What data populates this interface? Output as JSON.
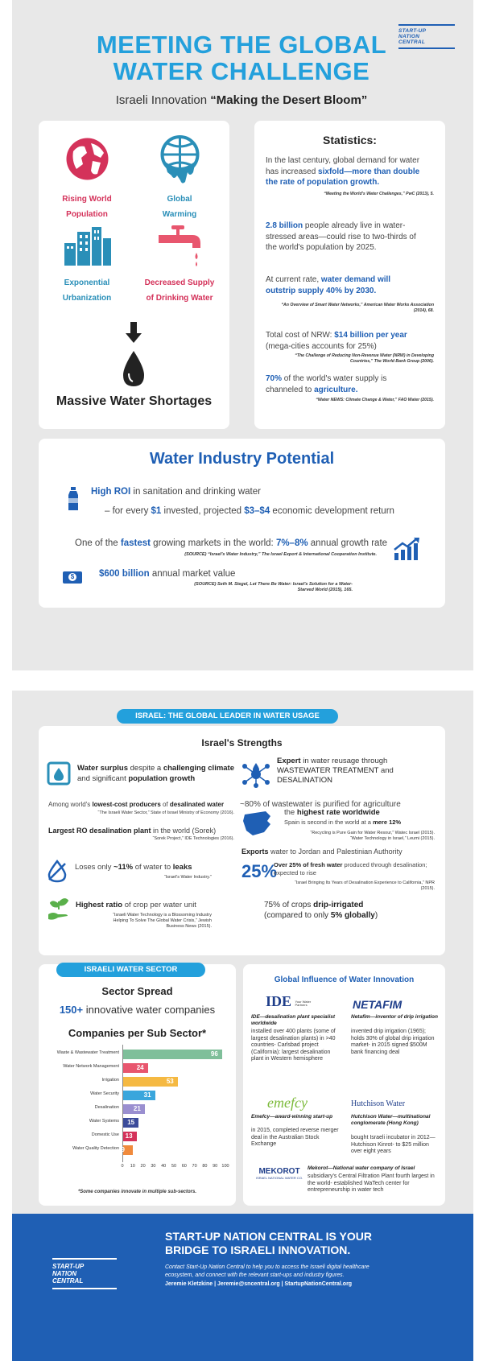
{
  "brand": {
    "line1": "START-UP",
    "line2": "NATION",
    "line3": "CENTRAL"
  },
  "header": {
    "title_line1": "MEETING THE GLOBAL",
    "title_line2": "WATER CHALLENGE",
    "subtitle_plain": "Israeli Innovation ",
    "subtitle_bold": "“Making the Desert Bloom”"
  },
  "drivers": {
    "rising_population_1": "Rising World",
    "rising_population_2": "Population",
    "global_warming_1": "Global",
    "global_warming_2": "Warming",
    "urbanization_1": "Exponential",
    "urbanization_2": "Urbanization",
    "supply_1": "Decreased Supply",
    "supply_2": "of Drinking Water",
    "result": "Massive Water Shortages"
  },
  "stats": {
    "title": "Statistics:",
    "s1_a": "In the last century, global demand for water has increased ",
    "s1_b": "sixfold—more than double the rate of population growth.",
    "s1_src": "“Meeting the World's Water Challenges,” PwC (2013), 5.",
    "s2_a": "2.8 billion",
    "s2_b": " people already live in water-stressed areas—could rise to two-thirds of the world's population by 2025.",
    "s3_a": "At current rate, ",
    "s3_b": "water demand will outstrip supply 40% by 2030.",
    "s3_src": "“An Overview of Smart Water Networks,” American Water Works Association (2014), 68.",
    "s4_a": "Total cost of NRW: ",
    "s4_b": "$14 billion per year",
    "s4_c": "(mega-cities accounts for 25%)",
    "s4_src": "“The Challenge of Reducing Non-Revenue Water (NRW) in Developing Countries,” The World Bank Group (2006).",
    "s5_a": "70%",
    "s5_b": " of the world's water supply is channeled to ",
    "s5_c": "agriculture.",
    "s5_src": "“Water NEWS: Climate Change & Water,” FAO Water (2015)."
  },
  "potential": {
    "title": "Water Industry Potential",
    "roi_a": "High ROI",
    "roi_b": " in sanitation and drinking water",
    "roi_c": "– for every ",
    "roi_d": "$1",
    "roi_e": " invested, projected ",
    "roi_f": "$3–$4",
    "roi_g": " economic development return",
    "fast_a": "One of the ",
    "fast_b": "fastest",
    "fast_c": " growing markets in the world: ",
    "fast_d": "7%–8%",
    "fast_e": " annual growth rate",
    "fast_src": "(SOURCE) “Israel's Water Industry,” The Israel Export & International Cooperation Institute.",
    "market_a": "$600 billion",
    "market_b": " annual market value",
    "market_src": "(SOURCE) Seth M. Siegel, Let There Be Water: Israel's Solution for a Water-Starved World (2015), 165."
  },
  "israel": {
    "ribbon": "ISRAEL: THE GLOBAL LEADER IN WATER USAGE",
    "title": "Israel's Strengths",
    "surplus_a": "Water surplus",
    "surplus_b": " despite a ",
    "surplus_c": "challenging climate",
    "surplus_d": " and significant ",
    "surplus_e": "population growth",
    "lowest_a": "Among world's ",
    "lowest_b": "lowest-cost producers",
    "lowest_c": " of ",
    "lowest_d": "desalinated water",
    "lowest_src": "“The Israeli Water Sector,” State of Israel Ministry of Economy (2016).",
    "ro_a": "Largest RO desalination plant",
    "ro_b": " in the world (Sorek)",
    "ro_src": "“Sorek Project,” IDE Technologies (2016).",
    "leaks_a": "Loses only ",
    "leaks_b": "~11%",
    "leaks_c": " of water to ",
    "leaks_d": "leaks",
    "leaks_src": "“Israel's Water Industry.”",
    "crop_a": "Highest ratio",
    "crop_b": " of crop per water unit",
    "crop_src": "“Israeli Water Technology is a Blossoming Industry Helping To Solve The Global Water Crisis,” Jewish Business News (2015).",
    "reuse_a": "Expert",
    "reuse_b": " in water reusage through",
    "reuse_c": "WASTEWATER TREATMENT",
    "reuse_d": " and",
    "reuse_e": "DESALINATION",
    "waste_a": "~80% of wastewater is purified for agriculture",
    "waste_b": "the ",
    "waste_c": "highest rate worldwide",
    "waste_d": "Spain is second in the world at a ",
    "waste_e": "mere 12%",
    "waste_src1": "“Recycling is Pure Gain for Water Resour,” Watec Israel (2015).",
    "waste_src2": "“Water Technology in Israel,” Leumi (2015).",
    "export_a": "Exports",
    "export_b": " water to Jordan and Palestinian Authority",
    "fresh_big": "25%",
    "fresh_a": "Over 25% of fresh water",
    "fresh_b": " produced through desalination; expected to rise",
    "fresh_src": "“Israel Bringing Its Years of Desalination Experience to California,” NPR (2015).",
    "drip_a": "75% of crops ",
    "drip_b": "drip-irrigated",
    "drip_c": "(compared to only ",
    "drip_d": "5% globally",
    "drip_e": ")"
  },
  "sector": {
    "ribbon": "ISRAELI WATER SECTOR",
    "spread_title": "Sector Spread",
    "count_a": "150+",
    "count_b": " innovative water companies",
    "chart_title": "Companies per Sub Sector*",
    "footnote": "*Some companies innovate in multiple sub-sectors."
  },
  "chart_data": {
    "type": "bar",
    "orientation": "horizontal",
    "title": "Companies per Sub Sector*",
    "categories": [
      "Waste & Wastewater Treatment",
      "Water Network Management",
      "Irrigation",
      "Water Security",
      "Desalination",
      "Water Systems",
      "Domestic Use",
      "Water Quality Detection"
    ],
    "values": [
      96,
      24,
      53,
      31,
      21,
      15,
      13,
      9
    ],
    "colors": [
      "#7fbf9a",
      "#e8566e",
      "#f5b942",
      "#3aa6dc",
      "#9a8fd0",
      "#3b4b9a",
      "#d4325a",
      "#f08a3c"
    ],
    "xticks": [
      "0",
      "10",
      "20",
      "30",
      "40",
      "50",
      "60",
      "70",
      "80",
      "90",
      "100"
    ],
    "xlim": [
      0,
      100
    ]
  },
  "global": {
    "title": "Global Influence of Water Innovation",
    "ide_logo": "IDE",
    "ide_logo_sub": "Your Water Partners",
    "ide_a": "IDE—desalination plant specialist worldwide",
    "ide_b": "installed over 400 plants (some of largest desalination plants) in >40 countries- Carlsbad project (California): largest desalination plant in Western hemisphere",
    "netafim_logo": "NETAFIM",
    "netafim_a": "Netafim—inventor of drip irrigation",
    "netafim_b": "invented drip irrigation (1965); holds 30% of global drip irrigation market- in 2015 signed $500M bank financing deal",
    "emefcy_logo": "emefcy",
    "emefcy_a": "Emefcy—award-winning start-up",
    "emefcy_b": "in 2015, completed reverse merger deal in the Australian Stock Exchange",
    "hutch_logo": "Hutchison Water",
    "hutch_a": "Hutchison Water—multinational conglomerate (Hong Kong)",
    "hutch_b": "bought Israeli incubator in 2012—Hutchison Kinrot- to $25 million over eight years",
    "mekorot_logo": "MEKOROT",
    "mekorot_logo_sub": "ISRAEL NATIONAL WATER CO.",
    "mekorot_a": "Mekorot—National water company of Israel",
    "mekorot_b": "subsidiary's Central Filtration Plant fourth largest in the world- established WaTech center for entrepreneurship in water tech"
  },
  "footer": {
    "headline1": "START-UP NATION CENTRAL IS YOUR",
    "headline2": "BRIDGE TO ISRAELI INNOVATION.",
    "body1": "Contact Start-Up Nation Central to help you to access the Israeli digital healthcare",
    "body2": "ecosystem, and connect with the relevant start-ups and industry figures.",
    "contact": "Jeremie Kletzkine | Jeremie@sncentral.org | StartupNationCentral.org",
    "logo1": "START-UP",
    "logo2": "NATION",
    "logo3": "CENTRAL"
  }
}
